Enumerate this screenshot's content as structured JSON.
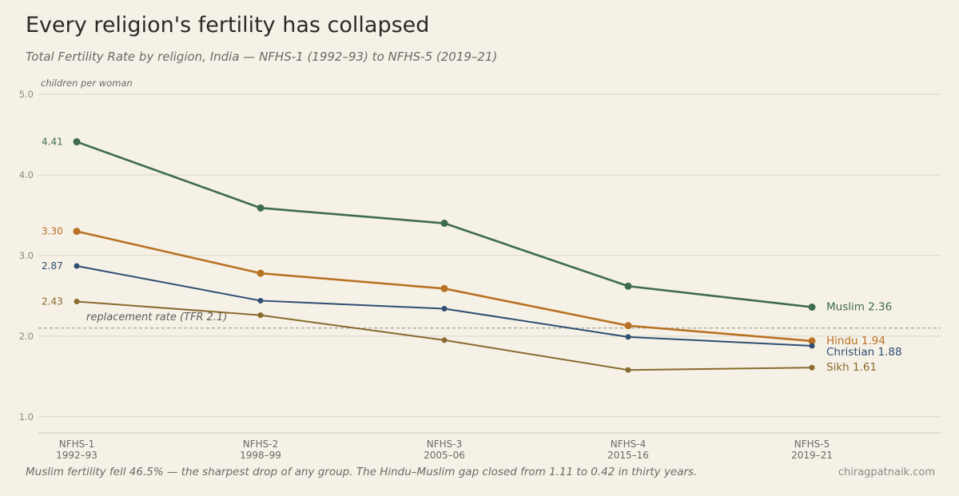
{
  "header": {
    "title": "Every religion's fertility has collapsed",
    "subtitle": "Total Fertility Rate by religion, India — NFHS-1 (1992–93) to NFHS-5 (2019–21)"
  },
  "footer": {
    "note": "Muslim fertility fell 46.5% — the sharpest drop of any group. The Hindu–Muslim gap closed from 1.11 to 0.42 in thirty years.",
    "credit": "chiragpatnaik.com"
  },
  "chart_data": {
    "type": "line",
    "ylabel": "children per woman",
    "ylim": [
      0.8,
      5.0
    ],
    "yticks": [
      1.0,
      2.0,
      3.0,
      4.0,
      5.0
    ],
    "grid": true,
    "categories": [
      {
        "survey": "NFHS-1",
        "period": "1992–93"
      },
      {
        "survey": "NFHS-2",
        "period": "1998–99"
      },
      {
        "survey": "NFHS-3",
        "period": "2005–06"
      },
      {
        "survey": "NFHS-4",
        "period": "2015–16"
      },
      {
        "survey": "NFHS-5",
        "period": "2019–21"
      }
    ],
    "reference_line": {
      "value": 2.1,
      "label": "replacement rate (TFR 2.1)"
    },
    "series": [
      {
        "name": "Muslim",
        "color": "#3d6b50",
        "values": [
          4.41,
          3.59,
          3.4,
          2.62,
          2.36
        ],
        "start_label": "4.41",
        "end_label": "Muslim 2.36",
        "emphasis": true
      },
      {
        "name": "Hindu",
        "color": "#b87122",
        "values": [
          3.3,
          2.78,
          2.59,
          2.13,
          1.94
        ],
        "start_label": "3.30",
        "end_label": "Hindu 1.94",
        "emphasis": true
      },
      {
        "name": "Christian",
        "color": "#2e4e72",
        "values": [
          2.87,
          2.44,
          2.34,
          1.99,
          1.88
        ],
        "start_label": "2.87",
        "end_label": "Christian 1.88",
        "emphasis": false
      },
      {
        "name": "Sikh",
        "color": "#876b2e",
        "values": [
          2.43,
          2.26,
          1.95,
          1.58,
          1.61
        ],
        "start_label": "2.43",
        "end_label": "Sikh 1.61",
        "emphasis": false
      }
    ]
  }
}
